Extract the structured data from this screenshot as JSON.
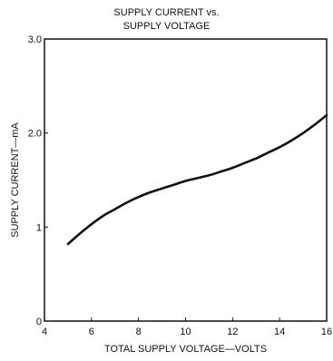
{
  "chart_data": {
    "type": "line",
    "title": [
      "SUPPLY CURRENT vs.",
      "SUPPLY VOLTAGE"
    ],
    "xlabel": "TOTAL SUPPLY VOLTAGE—VOLTS",
    "ylabel": "SUPPLY CURRENT—mA",
    "xlim": [
      4,
      16
    ],
    "ylim": [
      0,
      3.0
    ],
    "x_ticks": [
      4,
      6,
      8,
      10,
      12,
      14,
      16
    ],
    "x_tick_labels": [
      "4",
      "6",
      "8",
      "10",
      "12",
      "14",
      "16"
    ],
    "y_ticks": [
      0,
      1,
      2,
      3
    ],
    "y_tick_labels": [
      "0",
      "1",
      "2.0",
      "3.0"
    ],
    "grid": false,
    "series": [
      {
        "x": [
          5,
          5.5,
          6,
          6.5,
          7,
          7.5,
          8,
          8.5,
          9,
          9.5,
          10,
          10.5,
          11,
          11.5,
          12,
          12.5,
          13,
          13.5,
          14,
          14.5,
          15,
          15.5,
          16
        ],
        "y": [
          0.82,
          0.93,
          1.03,
          1.12,
          1.19,
          1.26,
          1.32,
          1.37,
          1.41,
          1.45,
          1.49,
          1.52,
          1.55,
          1.59,
          1.63,
          1.68,
          1.73,
          1.79,
          1.85,
          1.92,
          2.0,
          2.09,
          2.19
        ]
      }
    ],
    "line_color": "#111111"
  }
}
